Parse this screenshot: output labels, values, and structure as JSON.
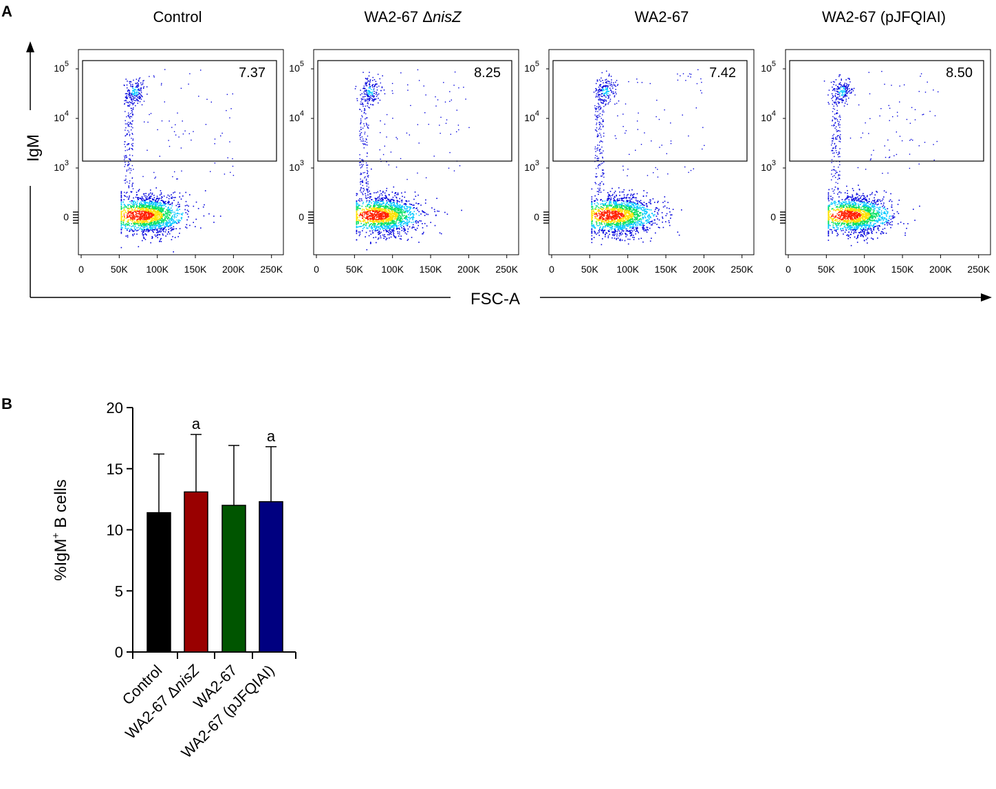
{
  "panel_a": {
    "label": "A",
    "x_axis_label": "FSC-A",
    "y_axis_label": "IgM",
    "x_tick_labels": [
      "0",
      "50K",
      "100K",
      "150K",
      "200K",
      "250K"
    ],
    "y_tick_labels": [
      {
        "base": "10",
        "exp": "5"
      },
      {
        "base": "10",
        "exp": "4"
      },
      {
        "base": "10",
        "exp": "3"
      },
      {
        "base": "0",
        "exp": ""
      }
    ],
    "plots": [
      {
        "title": "Control",
        "gate_value": "7.37"
      },
      {
        "title": "WA2-67 ΔnisZ",
        "title_plain": "WA2-67 Δ",
        "title_italic": "nisZ",
        "gate_value": "8.25"
      },
      {
        "title": "WA2-67",
        "gate_value": "7.42"
      },
      {
        "title": "WA2-67 (pJFQIAI)",
        "gate_value": "8.50"
      }
    ],
    "colormap": [
      "#0000dd",
      "#00c8ff",
      "#00e060",
      "#ffe000",
      "#ff2000"
    ]
  },
  "chart_data": {
    "type": "bar",
    "panel_label": "B",
    "title": "",
    "ylabel": "%IgM⁺ B cells",
    "ylabel_main": "%IgM",
    "ylabel_sup": "+",
    "ylabel_tail": " B cells",
    "xlabel": "",
    "ylim": [
      0,
      20
    ],
    "yticks": [
      0,
      5,
      10,
      15,
      20
    ],
    "categories": [
      "Control",
      "WA2-67 ΔnisZ",
      "WA2-67",
      "WA2-67 (pJFQIAI)"
    ],
    "category_parts": [
      {
        "plain": "Control",
        "italic": ""
      },
      {
        "plain": "WA2-67 Δ",
        "italic": "nisZ"
      },
      {
        "plain": "WA2-67",
        "italic": ""
      },
      {
        "plain": "WA2-67 (pJFQIAI)",
        "italic": ""
      }
    ],
    "values": [
      11.4,
      13.1,
      12.0,
      12.3
    ],
    "error_upper": [
      4.8,
      4.7,
      4.9,
      4.5
    ],
    "annotations": [
      "",
      "a",
      "",
      "a"
    ],
    "colors": [
      "#000000",
      "#990000",
      "#005500",
      "#000080"
    ]
  }
}
